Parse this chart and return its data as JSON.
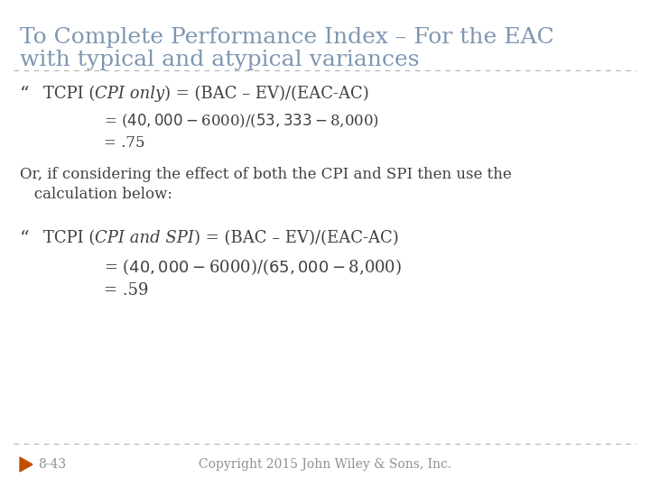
{
  "title_line1": "To Complete Performance Index – For the EAC",
  "title_line2": "with typical and atypical variances",
  "title_color": "#7f96b2",
  "background_color": "#ffffff",
  "separator_color": "#b0b0b0",
  "text_color": "#404040",
  "bullet1_sub1": "= ($40,000 - $6000)/($53,333 - $8,000)",
  "bullet1_sub2": "= .75",
  "or_line1": "Or, if considering the effect of both the CPI and SPI then use the",
  "or_line2": "   calculation below:",
  "bullet2_sub1": "= ($40,000 - $6000)/($65,000 - $8,000)",
  "bullet2_sub2": "= .59",
  "footer_left": "8-43",
  "footer_center": "Copyright 2015 John Wiley & Sons, Inc.",
  "footer_color": "#909090",
  "arrow_color": "#c05000",
  "title_fontsize": 18,
  "body_fontsize": 13,
  "sub_fontsize": 12
}
